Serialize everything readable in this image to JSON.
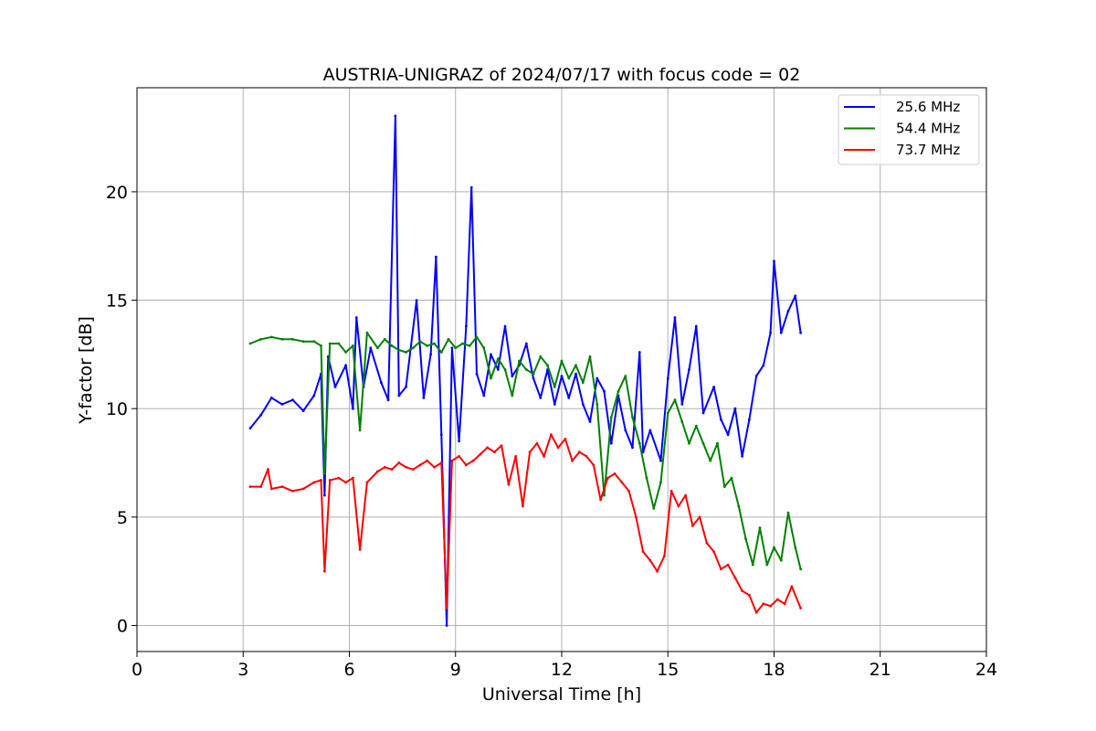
{
  "chart_data": {
    "type": "line",
    "title": "AUSTRIA-UNIGRAZ of 2024/07/17 with focus code = 02",
    "xlabel": "Universal Time [h]",
    "ylabel": "Y-factor [dB]",
    "xlim": [
      0,
      24
    ],
    "ylim": [
      -1.2,
      24.8
    ],
    "xticks": [
      0,
      3,
      6,
      9,
      12,
      15,
      18,
      21,
      24
    ],
    "yticks": [
      0,
      5,
      10,
      15,
      20
    ],
    "grid": true,
    "legend_position": "top-right",
    "series": [
      {
        "name": "25.6 MHz",
        "color": "#0000ff",
        "points": [
          [
            3.2,
            9.1
          ],
          [
            3.5,
            9.7
          ],
          [
            3.8,
            10.5
          ],
          [
            4.1,
            10.2
          ],
          [
            4.4,
            10.4
          ],
          [
            4.7,
            9.9
          ],
          [
            5.0,
            10.6
          ],
          [
            5.2,
            11.6
          ],
          [
            5.3,
            6.0
          ],
          [
            5.4,
            12.4
          ],
          [
            5.6,
            11.0
          ],
          [
            5.9,
            12.0
          ],
          [
            6.1,
            10.0
          ],
          [
            6.2,
            14.2
          ],
          [
            6.4,
            11.0
          ],
          [
            6.6,
            12.8
          ],
          [
            6.9,
            11.2
          ],
          [
            7.1,
            10.4
          ],
          [
            7.3,
            23.5
          ],
          [
            7.4,
            10.6
          ],
          [
            7.6,
            11.0
          ],
          [
            7.9,
            15.0
          ],
          [
            8.1,
            10.5
          ],
          [
            8.3,
            12.5
          ],
          [
            8.45,
            17.0
          ],
          [
            8.6,
            8.8
          ],
          [
            8.75,
            0.0
          ],
          [
            8.9,
            12.8
          ],
          [
            9.1,
            8.5
          ],
          [
            9.3,
            13.8
          ],
          [
            9.45,
            20.2
          ],
          [
            9.6,
            11.6
          ],
          [
            9.8,
            10.6
          ],
          [
            10.0,
            12.5
          ],
          [
            10.2,
            11.8
          ],
          [
            10.4,
            13.8
          ],
          [
            10.6,
            11.5
          ],
          [
            10.8,
            12.0
          ],
          [
            11.0,
            13.0
          ],
          [
            11.2,
            11.4
          ],
          [
            11.4,
            10.5
          ],
          [
            11.6,
            11.8
          ],
          [
            11.8,
            10.2
          ],
          [
            12.0,
            11.5
          ],
          [
            12.2,
            10.5
          ],
          [
            12.4,
            11.6
          ],
          [
            12.6,
            10.2
          ],
          [
            12.8,
            9.4
          ],
          [
            13.0,
            11.4
          ],
          [
            13.2,
            10.8
          ],
          [
            13.4,
            8.4
          ],
          [
            13.6,
            10.6
          ],
          [
            13.8,
            9.0
          ],
          [
            14.0,
            8.2
          ],
          [
            14.2,
            12.6
          ],
          [
            14.3,
            8.0
          ],
          [
            14.5,
            9.0
          ],
          [
            14.8,
            7.6
          ],
          [
            15.0,
            11.4
          ],
          [
            15.2,
            14.2
          ],
          [
            15.4,
            10.2
          ],
          [
            15.6,
            11.8
          ],
          [
            15.8,
            13.8
          ],
          [
            16.0,
            9.8
          ],
          [
            16.3,
            11.0
          ],
          [
            16.5,
            9.5
          ],
          [
            16.7,
            8.8
          ],
          [
            16.9,
            10.0
          ],
          [
            17.1,
            7.8
          ],
          [
            17.3,
            9.5
          ],
          [
            17.5,
            11.5
          ],
          [
            17.7,
            12.0
          ],
          [
            17.9,
            13.5
          ],
          [
            18.0,
            16.8
          ],
          [
            18.2,
            13.5
          ],
          [
            18.4,
            14.5
          ],
          [
            18.6,
            15.2
          ],
          [
            18.75,
            13.5
          ]
        ]
      },
      {
        "name": "54.4 MHz",
        "color": "#008000",
        "points": [
          [
            3.2,
            13.0
          ],
          [
            3.5,
            13.2
          ],
          [
            3.8,
            13.3
          ],
          [
            4.1,
            13.2
          ],
          [
            4.4,
            13.2
          ],
          [
            4.7,
            13.1
          ],
          [
            5.0,
            13.1
          ],
          [
            5.2,
            12.9
          ],
          [
            5.3,
            7.0
          ],
          [
            5.45,
            13.0
          ],
          [
            5.7,
            13.0
          ],
          [
            5.9,
            12.6
          ],
          [
            6.1,
            12.9
          ],
          [
            6.3,
            9.0
          ],
          [
            6.5,
            13.5
          ],
          [
            6.8,
            12.8
          ],
          [
            7.0,
            13.2
          ],
          [
            7.2,
            12.9
          ],
          [
            7.4,
            12.7
          ],
          [
            7.6,
            12.6
          ],
          [
            7.8,
            12.8
          ],
          [
            8.0,
            13.1
          ],
          [
            8.2,
            12.9
          ],
          [
            8.4,
            13.0
          ],
          [
            8.6,
            12.6
          ],
          [
            8.8,
            13.2
          ],
          [
            9.0,
            12.8
          ],
          [
            9.2,
            13.0
          ],
          [
            9.4,
            12.9
          ],
          [
            9.6,
            13.3
          ],
          [
            9.8,
            12.8
          ],
          [
            10.0,
            11.4
          ],
          [
            10.2,
            12.3
          ],
          [
            10.4,
            11.8
          ],
          [
            10.6,
            10.6
          ],
          [
            10.8,
            12.2
          ],
          [
            11.0,
            11.8
          ],
          [
            11.2,
            11.6
          ],
          [
            11.4,
            12.4
          ],
          [
            11.6,
            12.0
          ],
          [
            11.8,
            11.0
          ],
          [
            12.0,
            12.2
          ],
          [
            12.2,
            11.4
          ],
          [
            12.4,
            12.0
          ],
          [
            12.6,
            11.2
          ],
          [
            12.8,
            12.4
          ],
          [
            13.0,
            10.2
          ],
          [
            13.2,
            6.0
          ],
          [
            13.4,
            9.6
          ],
          [
            13.6,
            10.8
          ],
          [
            13.8,
            11.5
          ],
          [
            14.0,
            9.6
          ],
          [
            14.2,
            8.4
          ],
          [
            14.4,
            6.8
          ],
          [
            14.6,
            5.4
          ],
          [
            14.8,
            6.6
          ],
          [
            15.0,
            9.8
          ],
          [
            15.2,
            10.4
          ],
          [
            15.4,
            9.4
          ],
          [
            15.6,
            8.4
          ],
          [
            15.8,
            9.2
          ],
          [
            16.0,
            8.4
          ],
          [
            16.2,
            7.6
          ],
          [
            16.4,
            8.4
          ],
          [
            16.6,
            6.4
          ],
          [
            16.8,
            6.8
          ],
          [
            17.0,
            5.5
          ],
          [
            17.2,
            4.0
          ],
          [
            17.4,
            2.8
          ],
          [
            17.6,
            4.5
          ],
          [
            17.8,
            2.8
          ],
          [
            18.0,
            3.6
          ],
          [
            18.2,
            3.0
          ],
          [
            18.4,
            5.2
          ],
          [
            18.6,
            3.6
          ],
          [
            18.75,
            2.6
          ]
        ]
      },
      {
        "name": "73.7 MHz",
        "color": "#ff0000",
        "points": [
          [
            3.2,
            6.4
          ],
          [
            3.5,
            6.4
          ],
          [
            3.7,
            7.2
          ],
          [
            3.8,
            6.3
          ],
          [
            4.1,
            6.4
          ],
          [
            4.4,
            6.2
          ],
          [
            4.7,
            6.3
          ],
          [
            5.0,
            6.6
          ],
          [
            5.2,
            6.7
          ],
          [
            5.3,
            2.5
          ],
          [
            5.45,
            6.7
          ],
          [
            5.7,
            6.8
          ],
          [
            5.9,
            6.6
          ],
          [
            6.1,
            6.8
          ],
          [
            6.3,
            3.5
          ],
          [
            6.5,
            6.6
          ],
          [
            6.8,
            7.1
          ],
          [
            7.0,
            7.3
          ],
          [
            7.2,
            7.2
          ],
          [
            7.4,
            7.5
          ],
          [
            7.6,
            7.3
          ],
          [
            7.8,
            7.2
          ],
          [
            8.0,
            7.4
          ],
          [
            8.2,
            7.6
          ],
          [
            8.4,
            7.3
          ],
          [
            8.6,
            7.5
          ],
          [
            8.75,
            0.8
          ],
          [
            8.9,
            7.6
          ],
          [
            9.1,
            7.8
          ],
          [
            9.3,
            7.4
          ],
          [
            9.5,
            7.6
          ],
          [
            9.7,
            7.9
          ],
          [
            9.9,
            8.2
          ],
          [
            10.1,
            8.0
          ],
          [
            10.3,
            8.3
          ],
          [
            10.5,
            6.5
          ],
          [
            10.7,
            7.8
          ],
          [
            10.9,
            5.5
          ],
          [
            11.1,
            8.0
          ],
          [
            11.3,
            8.4
          ],
          [
            11.5,
            7.8
          ],
          [
            11.7,
            8.8
          ],
          [
            11.9,
            8.2
          ],
          [
            12.1,
            8.6
          ],
          [
            12.3,
            7.6
          ],
          [
            12.5,
            8.0
          ],
          [
            12.7,
            7.8
          ],
          [
            12.9,
            7.4
          ],
          [
            13.1,
            5.8
          ],
          [
            13.3,
            6.8
          ],
          [
            13.5,
            7.0
          ],
          [
            13.7,
            6.6
          ],
          [
            13.9,
            6.2
          ],
          [
            14.1,
            5.0
          ],
          [
            14.3,
            3.4
          ],
          [
            14.5,
            3.0
          ],
          [
            14.7,
            2.5
          ],
          [
            14.9,
            3.2
          ],
          [
            15.1,
            6.2
          ],
          [
            15.3,
            5.5
          ],
          [
            15.5,
            6.0
          ],
          [
            15.7,
            4.6
          ],
          [
            15.9,
            5.0
          ],
          [
            16.1,
            3.8
          ],
          [
            16.3,
            3.4
          ],
          [
            16.5,
            2.6
          ],
          [
            16.7,
            2.8
          ],
          [
            16.9,
            2.2
          ],
          [
            17.1,
            1.6
          ],
          [
            17.3,
            1.4
          ],
          [
            17.5,
            0.6
          ],
          [
            17.7,
            1.0
          ],
          [
            17.9,
            0.9
          ],
          [
            18.1,
            1.2
          ],
          [
            18.3,
            1.0
          ],
          [
            18.5,
            1.8
          ],
          [
            18.75,
            0.8
          ]
        ]
      }
    ]
  }
}
